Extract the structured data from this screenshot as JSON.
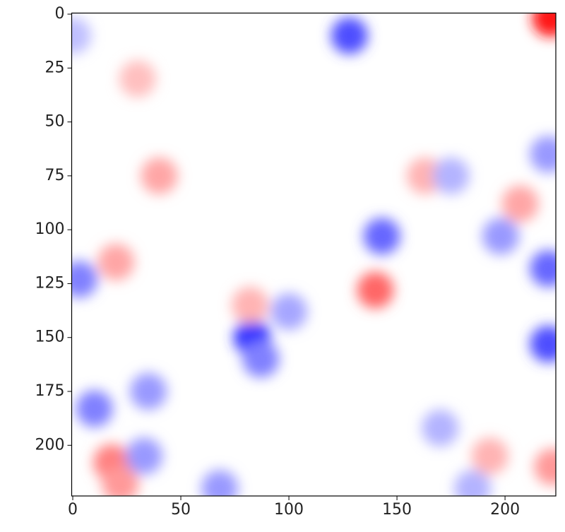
{
  "chart_data": {
    "type": "heatmap",
    "colormap": "bwr",
    "xlim": [
      -0.5,
      223.5
    ],
    "ylim": [
      223.5,
      -0.5
    ],
    "xticks": [
      0,
      50,
      100,
      150,
      200
    ],
    "yticks": [
      0,
      25,
      50,
      75,
      100,
      125,
      150,
      175,
      200
    ],
    "points": {
      "x": [
        221,
        128,
        143,
        140,
        83,
        87,
        220,
        220,
        220,
        3,
        10,
        18,
        22,
        33,
        35,
        40,
        20,
        207,
        163,
        198,
        68,
        170,
        193,
        222,
        0,
        100,
        82,
        175,
        185,
        30
      ],
      "y": [
        2,
        10,
        103,
        128,
        150,
        160,
        118,
        153,
        65,
        123,
        183,
        208,
        218,
        205,
        175,
        75,
        115,
        88,
        75,
        103,
        220,
        192,
        205,
        210,
        10,
        138,
        135,
        75,
        220,
        30
      ],
      "values": [
        0.9,
        -0.7,
        -0.6,
        0.6,
        -0.8,
        -0.5,
        -0.6,
        -0.7,
        -0.4,
        -0.5,
        -0.5,
        0.5,
        0.4,
        -0.4,
        -0.4,
        0.35,
        0.35,
        0.35,
        0.3,
        -0.4,
        -0.4,
        -0.3,
        0.3,
        0.4,
        -0.25,
        -0.35,
        0.3,
        -0.3,
        -0.3,
        0.25
      ]
    }
  }
}
